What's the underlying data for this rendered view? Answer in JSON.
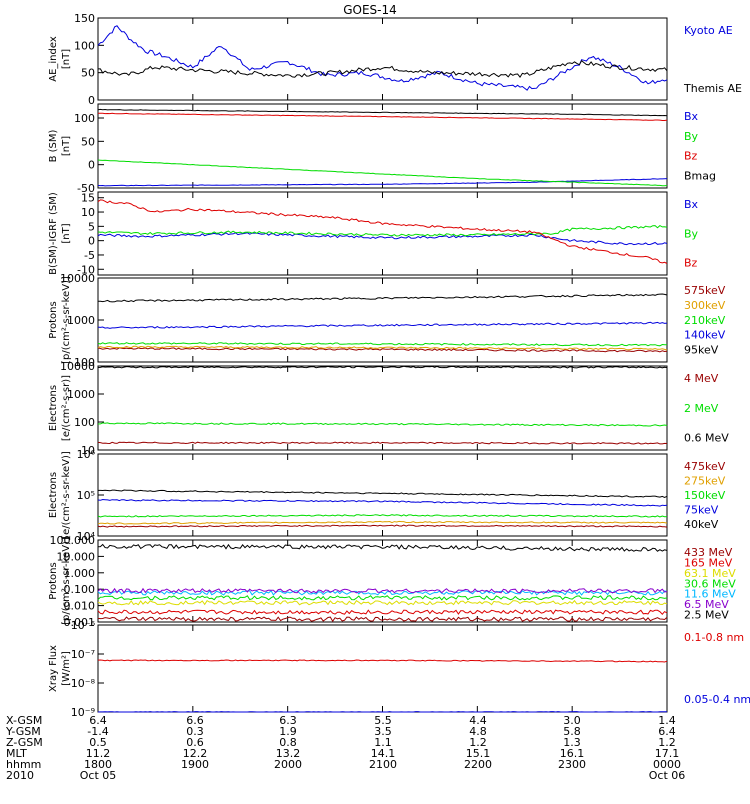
{
  "title": "GOES-14",
  "colors": {
    "black": "#000000",
    "blue": "#0000dd",
    "green": "#00dd00",
    "red": "#dd0000",
    "darkred": "#990000",
    "orange": "#e0a000",
    "yellow": "#dddd00",
    "cyan": "#00b8ff",
    "purple": "#8800cc"
  },
  "chart_data": [
    {
      "type": "line",
      "ylabel": "AE_index\n[nT]",
      "ylim": [
        0,
        150
      ],
      "yscale": "linear",
      "yticks": [
        "0",
        "50",
        "100",
        "150"
      ],
      "xlim": [
        "18:00",
        "24:00"
      ],
      "series": [
        {
          "name": "Kyoto AE",
          "color": "#0000dd",
          "x": [
            0,
            0.2,
            0.35,
            0.5,
            0.7,
            1.0,
            1.3,
            1.6,
            2.0,
            2.4,
            2.8,
            3.2,
            3.6,
            4.0,
            4.3,
            4.6,
            4.9,
            5.2,
            5.5,
            5.8,
            6.0
          ],
          "y": [
            100,
            135,
            110,
            90,
            80,
            60,
            100,
            55,
            70,
            45,
            50,
            35,
            50,
            30,
            25,
            20,
            50,
            80,
            60,
            30,
            40
          ]
        },
        {
          "name": "Themis AE",
          "color": "#000000",
          "x": [
            0,
            0.3,
            0.6,
            1.0,
            1.5,
            2.0,
            2.5,
            3.0,
            3.5,
            4.0,
            4.5,
            5.0,
            5.5,
            6.0
          ],
          "y": [
            55,
            45,
            60,
            55,
            50,
            45,
            50,
            60,
            50,
            48,
            45,
            70,
            60,
            55
          ]
        }
      ]
    },
    {
      "type": "line",
      "ylabel": "B (SM)\n[nT]",
      "ylim": [
        -50,
        130
      ],
      "yscale": "linear",
      "yticks": [
        "-50",
        "0",
        "50",
        "100"
      ],
      "series": [
        {
          "name": "Bx",
          "color": "#0000dd",
          "x": [
            0,
            3,
            4.5,
            6
          ],
          "y": [
            -45,
            -42,
            -38,
            -30
          ]
        },
        {
          "name": "By",
          "color": "#00dd00",
          "x": [
            0,
            2,
            4,
            6
          ],
          "y": [
            10,
            -10,
            -30,
            -45
          ]
        },
        {
          "name": "Bz",
          "color": "#dd0000",
          "x": [
            0,
            3,
            5,
            6
          ],
          "y": [
            110,
            103,
            98,
            95
          ]
        },
        {
          "name": "Bmag",
          "color": "#000000",
          "x": [
            0,
            3,
            5,
            6
          ],
          "y": [
            118,
            112,
            108,
            105
          ]
        }
      ]
    },
    {
      "type": "line",
      "ylabel": "B(SM)-IGRF (SM)\n[nT]",
      "ylim": [
        -12,
        17
      ],
      "yscale": "linear",
      "yticks": [
        "-10",
        "-5",
        "0",
        "5",
        "10",
        "15"
      ],
      "series": [
        {
          "name": "Bx",
          "color": "#0000dd",
          "x": [
            0,
            0.5,
            1.5,
            3,
            4,
            4.6,
            5,
            5.5,
            6
          ],
          "y": [
            2,
            1.5,
            2.5,
            1,
            1.5,
            2,
            0,
            -1,
            -1
          ]
        },
        {
          "name": "By",
          "color": "#00dd00",
          "x": [
            0,
            0.5,
            1.5,
            3,
            4,
            4.8,
            5,
            5.5,
            6
          ],
          "y": [
            3,
            2.5,
            3,
            2,
            2,
            2.5,
            4,
            4.5,
            5
          ]
        },
        {
          "name": "Bz",
          "color": "#dd0000",
          "x": [
            0,
            0.3,
            0.6,
            1.0,
            1.5,
            2.5,
            3.0,
            3.5,
            4.0,
            4.6,
            5.0,
            5.4,
            5.8,
            6.0
          ],
          "y": [
            14,
            13,
            10,
            11,
            10,
            8,
            6,
            5,
            4,
            3,
            -2,
            -4,
            -6,
            -8
          ]
        }
      ]
    },
    {
      "type": "line",
      "ylabel": "Protons\n[p/(cm²-s-sr-keV)]",
      "ylim": [
        100,
        10000
      ],
      "yscale": "log",
      "yticks": [
        "100",
        "1000",
        "10000"
      ],
      "series": [
        {
          "name": "575keV",
          "color": "#990000",
          "x": [
            0,
            3,
            6
          ],
          "y": [
            210,
            200,
            180
          ]
        },
        {
          "name": "300keV",
          "color": "#e0a000",
          "x": [
            0,
            3,
            6
          ],
          "y": [
            230,
            220,
            200
          ]
        },
        {
          "name": "210keV",
          "color": "#00dd00",
          "x": [
            0,
            3,
            6
          ],
          "y": [
            280,
            270,
            250
          ]
        },
        {
          "name": "140keV",
          "color": "#0000dd",
          "x": [
            0,
            3,
            6
          ],
          "y": [
            650,
            750,
            850
          ]
        },
        {
          "name": "95keV",
          "color": "#000000",
          "x": [
            0,
            3,
            6
          ],
          "y": [
            2800,
            3300,
            4000
          ]
        }
      ]
    },
    {
      "type": "line",
      "ylabel": "Electrons\n[e/(cm²-s-sr)]",
      "ylim": [
        10,
        10000
      ],
      "yscale": "log",
      "yticks": [
        "10",
        "100",
        "1000",
        "10000"
      ],
      "series": [
        {
          "name": "4 MeV",
          "color": "#990000",
          "x": [
            0,
            3,
            6
          ],
          "y": [
            18,
            18,
            17
          ]
        },
        {
          "name": "2 MeV",
          "color": "#00dd00",
          "x": [
            0,
            3,
            6
          ],
          "y": [
            90,
            85,
            75
          ]
        },
        {
          "name": "0.6 MeV",
          "color": "#000000",
          "x": [
            0,
            3,
            6
          ],
          "y": [
            9000,
            9200,
            9000
          ]
        }
      ]
    },
    {
      "type": "line",
      "ylabel": "Electrons\n[e/(cm²-s-sr-keV)]",
      "ylim": [
        10000,
        1000000
      ],
      "yscale": "log",
      "yticks": [
        "10⁴",
        "10⁵",
        "10⁶"
      ],
      "series": [
        {
          "name": "475keV",
          "color": "#990000",
          "x": [
            0,
            3,
            6
          ],
          "y": [
            17000,
            18000,
            17000
          ]
        },
        {
          "name": "275keV",
          "color": "#e0a000",
          "x": [
            0,
            3,
            6
          ],
          "y": [
            20000,
            22000,
            21000
          ]
        },
        {
          "name": "150keV",
          "color": "#00dd00",
          "x": [
            0,
            3,
            6
          ],
          "y": [
            30000,
            32000,
            30000
          ]
        },
        {
          "name": "75keV",
          "color": "#0000dd",
          "x": [
            0,
            3,
            6
          ],
          "y": [
            75000,
            70000,
            55000
          ]
        },
        {
          "name": "40keV",
          "color": "#000000",
          "x": [
            0,
            3,
            6
          ],
          "y": [
            130000,
            110000,
            90000
          ]
        }
      ]
    },
    {
      "type": "line",
      "ylabel": "Protons\n[p/(cm²-s-sr-keV)]",
      "ylim": [
        0.001,
        100
      ],
      "yscale": "log",
      "yticks": [
        "0.001",
        "0.010",
        "0.100",
        "1.000",
        "10.000",
        "100.000"
      ],
      "series": [
        {
          "name": "433 MeV",
          "color": "#990000",
          "x": [
            0,
            6
          ],
          "y": [
            0.0015,
            0.0015
          ]
        },
        {
          "name": "165 MeV",
          "color": "#dd0000",
          "x": [
            0,
            6
          ],
          "y": [
            0.004,
            0.004
          ]
        },
        {
          "name": "63.1 MeV",
          "color": "#dddd00",
          "x": [
            0,
            6
          ],
          "y": [
            0.015,
            0.015
          ]
        },
        {
          "name": "30.6 MeV",
          "color": "#00dd00",
          "x": [
            0,
            6
          ],
          "y": [
            0.03,
            0.03
          ]
        },
        {
          "name": "11.6 MeV",
          "color": "#00b8ff",
          "x": [
            0,
            6
          ],
          "y": [
            0.06,
            0.06
          ]
        },
        {
          "name": "6.5 MeV",
          "color": "#8800cc",
          "x": [
            0,
            6
          ],
          "y": [
            0.08,
            0.08
          ]
        },
        {
          "name": "2.5 MeV",
          "color": "#000000",
          "x": [
            0,
            3,
            6
          ],
          "y": [
            40,
            38,
            25
          ]
        }
      ]
    },
    {
      "type": "line",
      "ylabel": "Xray Flux\n[W/m²]",
      "ylim": [
        1e-09,
        1e-06
      ],
      "yscale": "log",
      "yticks": [
        "10⁻⁹",
        "10⁻⁸",
        "10⁻⁷",
        "10⁻⁶"
      ],
      "series": [
        {
          "name": "0.1-0.8 nm",
          "color": "#dd0000",
          "x": [
            0,
            3,
            6
          ],
          "y": [
            6e-08,
            6e-08,
            5.5e-08
          ]
        },
        {
          "name": "0.05-0.4 nm",
          "color": "#0000dd",
          "x": [
            0,
            3,
            6
          ],
          "y": [
            1e-09,
            1e-09,
            1e-09
          ]
        }
      ]
    }
  ],
  "ephemeris": {
    "rows": [
      {
        "label": "X-GSM",
        "values": [
          "6.4",
          "6.6",
          "6.3",
          "5.5",
          "4.4",
          "3.0",
          "1.4"
        ]
      },
      {
        "label": "Y-GSM",
        "values": [
          "-1.4",
          "0.3",
          "1.9",
          "3.5",
          "4.8",
          "5.8",
          "6.4"
        ]
      },
      {
        "label": "Z-GSM",
        "values": [
          "0.5",
          "0.6",
          "0.8",
          "1.1",
          "1.2",
          "1.3",
          "1.2"
        ]
      },
      {
        "label": "MLT",
        "values": [
          "11.2",
          "12.2",
          "13.2",
          "14.1",
          "15.1",
          "16.1",
          "17.1"
        ]
      },
      {
        "label": "hhmm",
        "values": [
          "1800",
          "1900",
          "2000",
          "2100",
          "2200",
          "2300",
          "0000"
        ]
      },
      {
        "label": "2010",
        "values": [
          "Oct 05",
          "",
          "",
          "",
          "",
          "",
          "Oct 06"
        ]
      }
    ]
  }
}
